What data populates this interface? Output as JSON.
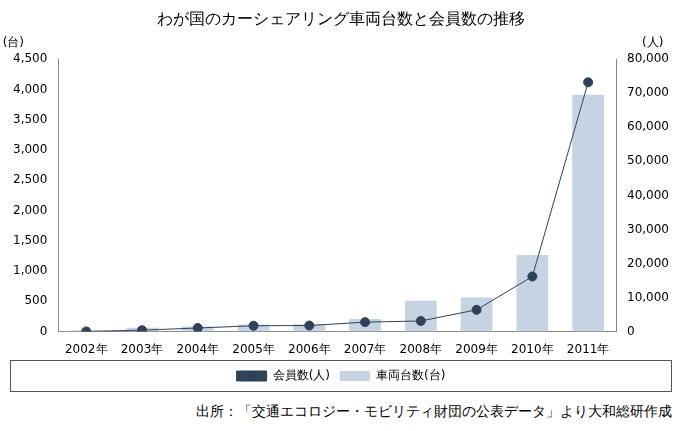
{
  "chart_data": {
    "type": "bar",
    "title": "わが国のカーシェアリング車両台数と会員数の推移",
    "ylabel": "(台)",
    "y2label": "(人)",
    "annotations": [
      "出所：「交通エコロジー・モビリティ財団の公表データ」より大和総研作成"
    ],
    "categories": [
      "2002年",
      "2003年",
      "2004年",
      "2005年",
      "2006年",
      "2007年",
      "2008年",
      "2009年",
      "2010年",
      "2011年"
    ],
    "series": [
      {
        "name": "車両台数(台)",
        "type": "bar",
        "color": "#c5d3e2",
        "values": [
          21,
          63,
          86,
          118,
          123,
          210,
          510,
          563,
          1265,
          3911
        ]
      },
      {
        "name": "会員数(人)",
        "type": "line",
        "axis": "y2",
        "color": "#2f4258",
        "marker": "circle",
        "values": [
          50,
          415,
          1059,
          1712,
          1780,
          2780,
          3120,
          6396,
          16177,
          73224
        ]
      }
    ],
    "ylim": [
      0,
      4500
    ],
    "yticks": [
      0,
      500,
      {
        "value": 1000,
        "label": "1,000"
      },
      {
        "value": 1500,
        "label": "1,500"
      },
      {
        "value": 2000,
        "label": "2,000"
      },
      {
        "value": 2500,
        "label": "2,500"
      },
      {
        "value": 3000,
        "label": "3,000"
      },
      {
        "value": 3500,
        "label": "3,500"
      },
      {
        "value": 4000,
        "label": "4,000"
      },
      {
        "value": 4500,
        "label": "4,500"
      }
    ],
    "y2lim": [
      0,
      80000
    ],
    "y2ticks": [
      0,
      {
        "value": 10000,
        "label": "10,000"
      },
      {
        "value": 20000,
        "label": "20,000"
      },
      {
        "value": 30000,
        "label": "30,000"
      },
      {
        "value": 40000,
        "label": "40,000"
      },
      {
        "value": 50000,
        "label": "50,000"
      },
      {
        "value": 60000,
        "label": "60,000"
      },
      {
        "value": 70000,
        "label": "70,000"
      },
      {
        "value": 80000,
        "label": "80,000"
      }
    ],
    "grid": false,
    "legend": "bottom"
  }
}
